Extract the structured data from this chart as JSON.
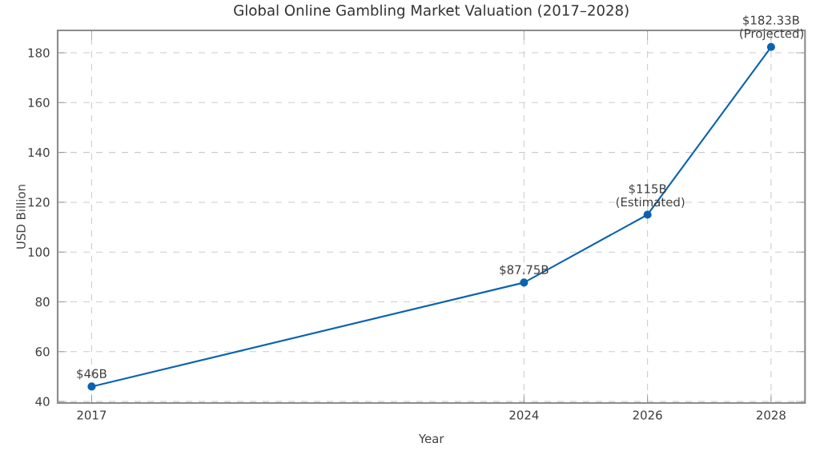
{
  "chart_data": {
    "type": "line",
    "title": "Global Online Gambling Market Valuation (2017–2028)",
    "xlabel": "Year",
    "ylabel": "USD Billion",
    "x": [
      2017,
      2024,
      2026,
      2028
    ],
    "series": [
      {
        "color": "#0b63b0",
        "values": [
          46,
          87.75,
          115,
          182.33
        ],
        "value_labels": [
          "$46B",
          "$87.75B",
          "$115B (Estimated)",
          "$182.33B (Projected)"
        ]
      }
    ],
    "xlim": [
      2016.45,
      2028.55
    ],
    "xticks": [
      2017,
      2024,
      2026,
      2028
    ],
    "ylim": [
      39.4,
      189
    ],
    "yticks": [
      40,
      60,
      80,
      100,
      120,
      140,
      160,
      180
    ],
    "grid": true,
    "marker": "circle",
    "line_style": "solid"
  }
}
